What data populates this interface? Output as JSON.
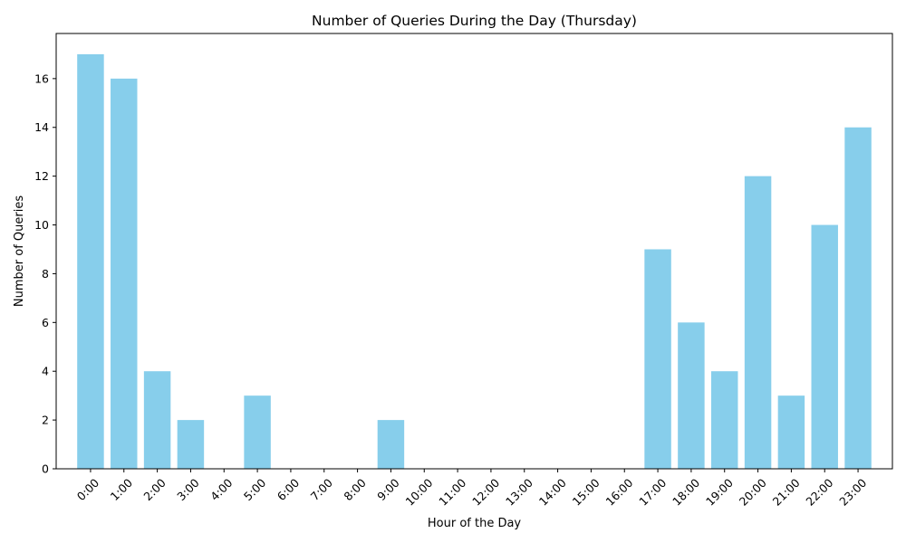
{
  "chart_data": {
    "type": "bar",
    "title": "Number of Queries During the Day (Thursday)",
    "xlabel": "Hour of the Day",
    "ylabel": "Number of Queries",
    "categories": [
      "0:00",
      "1:00",
      "2:00",
      "3:00",
      "4:00",
      "5:00",
      "6:00",
      "7:00",
      "8:00",
      "9:00",
      "10:00",
      "11:00",
      "12:00",
      "13:00",
      "14:00",
      "15:00",
      "16:00",
      "17:00",
      "18:00",
      "19:00",
      "20:00",
      "21:00",
      "22:00",
      "23:00"
    ],
    "values": [
      17,
      16,
      4,
      2,
      0,
      3,
      0,
      0,
      0,
      2,
      0,
      0,
      0,
      0,
      0,
      0,
      0,
      9,
      6,
      4,
      12,
      3,
      10,
      14
    ],
    "ylim": [
      0,
      17.85
    ],
    "yticks": [
      0,
      2,
      4,
      6,
      8,
      10,
      12,
      14,
      16
    ],
    "bar_color": "#87CEEB",
    "grid": false,
    "legend": "none"
  }
}
